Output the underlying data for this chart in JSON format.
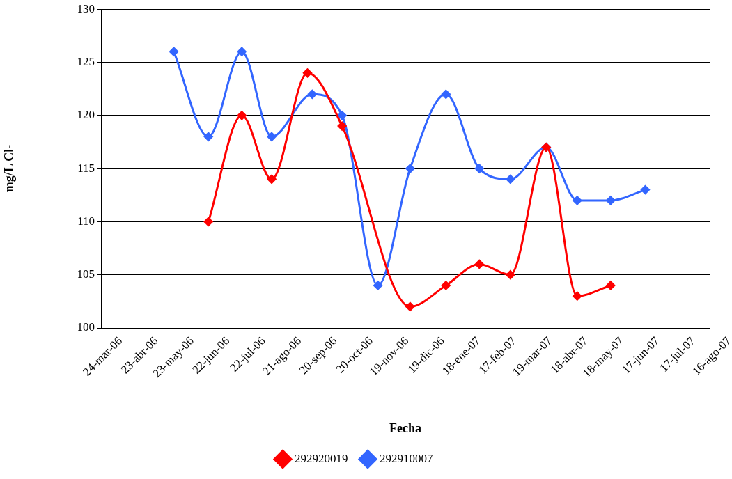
{
  "chart_data": {
    "type": "line",
    "xlabel": "Fecha",
    "ylabel": "mg/L Cl-",
    "xlim": [
      "2006-03-24",
      "2007-08-16"
    ],
    "xticks": [
      {
        "value": "2006-03-24",
        "label": "24-mar-06"
      },
      {
        "value": "2006-04-23",
        "label": "23-abr-06"
      },
      {
        "value": "2006-05-23",
        "label": "23-may-06"
      },
      {
        "value": "2006-06-22",
        "label": "22-jun-06"
      },
      {
        "value": "2006-07-22",
        "label": "22-jul-06"
      },
      {
        "value": "2006-08-21",
        "label": "21-ago-06"
      },
      {
        "value": "2006-09-20",
        "label": "20-sep-06"
      },
      {
        "value": "2006-10-20",
        "label": "20-oct-06"
      },
      {
        "value": "2006-11-19",
        "label": "19-nov-06"
      },
      {
        "value": "2006-12-19",
        "label": "19-dic-06"
      },
      {
        "value": "2007-01-18",
        "label": "18-ene-07"
      },
      {
        "value": "2007-02-17",
        "label": "17-feb-07"
      },
      {
        "value": "2007-03-19",
        "label": "19-mar-07"
      },
      {
        "value": "2007-04-18",
        "label": "18-abr-07"
      },
      {
        "value": "2007-05-18",
        "label": "18-may-07"
      },
      {
        "value": "2007-06-17",
        "label": "17-jun-07"
      },
      {
        "value": "2007-07-17",
        "label": "17-jul-07"
      },
      {
        "value": "2007-08-16",
        "label": "16-ago-07"
      }
    ],
    "ylim": [
      100,
      130
    ],
    "yticks": [
      100,
      105,
      110,
      115,
      120,
      125,
      130
    ],
    "grid": "y",
    "legend": "bottom",
    "marker": "diamond",
    "line_style": "solid",
    "series": [
      {
        "name": "292910007",
        "color": "#3366ff",
        "x": [
          "2006-05-24",
          "2006-06-22",
          "2006-07-20",
          "2006-08-14",
          "2006-09-17",
          "2006-10-12",
          "2006-11-11",
          "2006-12-08",
          "2007-01-07",
          "2007-02-04",
          "2007-03-02",
          "2007-04-01",
          "2007-04-27",
          "2007-05-25",
          "2007-06-23"
        ],
        "values": [
          126,
          118,
          126,
          118,
          122,
          120,
          104,
          115,
          122,
          115,
          114,
          117,
          112,
          112,
          113
        ]
      },
      {
        "name": "292920019",
        "color": "#ff0000",
        "x": [
          "2006-06-22",
          "2006-07-20",
          "2006-08-14",
          "2006-09-13",
          "2006-10-12",
          "2006-12-08",
          "2007-01-07",
          "2007-02-04",
          "2007-03-02",
          "2007-04-01",
          "2007-04-27",
          "2007-05-25"
        ],
        "values": [
          110,
          120,
          114,
          124,
          119,
          102,
          104,
          106,
          105,
          117,
          103,
          104
        ]
      }
    ]
  }
}
